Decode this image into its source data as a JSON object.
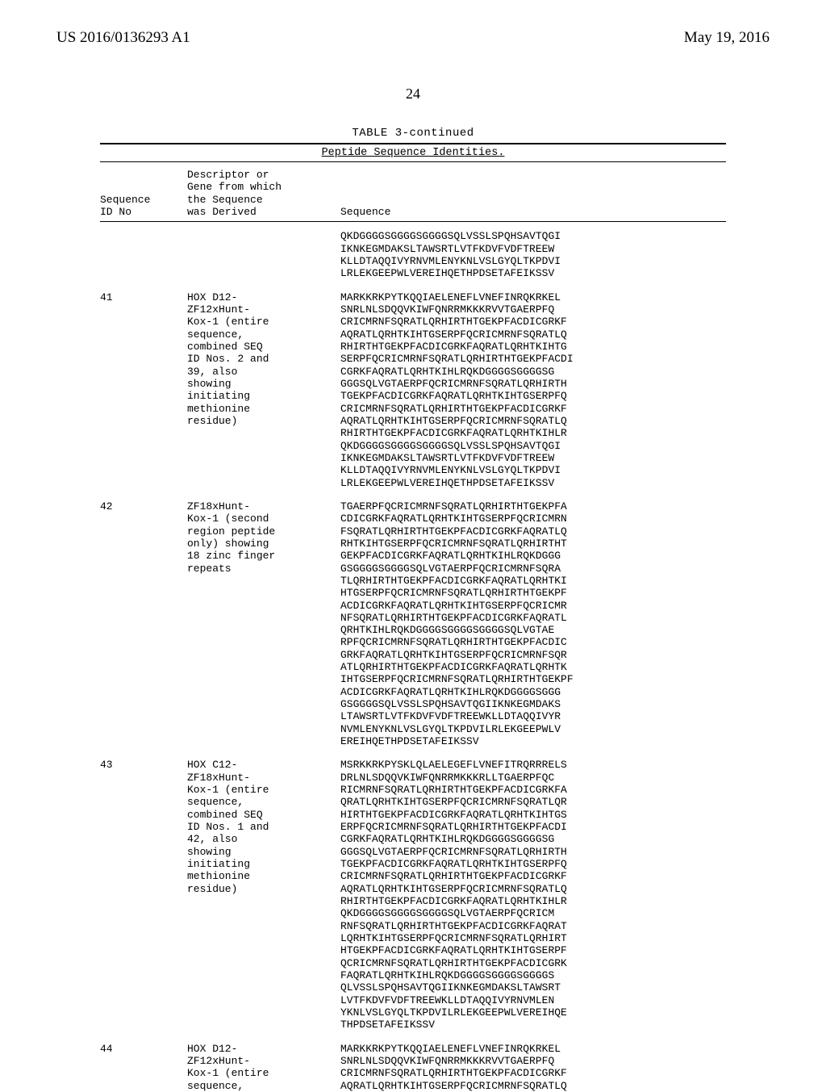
{
  "header": {
    "left": "US 2016/0136293 A1",
    "right": "May 19, 2016"
  },
  "page_number": "24",
  "table_title": "TABLE 3-continued",
  "subtitle": "Peptide Sequence Identities.",
  "columns": {
    "id": "Sequence\nID No",
    "desc": "Descriptor or\nGene from which\nthe Sequence\nwas Derived",
    "seq": "Sequence"
  },
  "rows": [
    {
      "id": "",
      "desc": "",
      "seq": [
        "QKDGGGGSGGGGSGGGGSQLVSSLSPQHSAVTQGI",
        "IKNKEGMDAKSLTAWSRTLVTFKDVFVDFTREEW",
        "KLLDTAQQIVYRNVMLENYKNLVSLGYQLTKPDVI",
        "LRLEKGEEPWLVEREIHQETHPDSETAFEIKSSV"
      ]
    },
    {
      "id": "41",
      "desc": "HOX D12-\nZF12xHunt-\nKox-1 (entire\nsequence,\ncombined SEQ\nID Nos. 2 and\n39, also\nshowing\ninitiating\nmethionine\nresidue)",
      "seq": [
        "MARKKRKPYTKQQIAELENEFLVNEFINRQKRKEL",
        "SNRLNLSDQQVKIWFQNRRMKKKRVVTGAERPFQ",
        "CRICMRNFSQRATLQRHIRTHTGEKPFACDICGRKF",
        "AQRATLQRHTKIHTGSERPFQCRICMRNFSQRATLQ",
        "RHIRTHTGEKPFACDICGRKFAQRATLQRHTKIHTG",
        "SERPFQCRICMRNFSQRATLQRHIRTHTGEKPFACDI",
        "CGRKFAQRATLQRHTKIHLRQKDGGGGSGGGGSG",
        "GGGSQLVGTAERPFQCRICMRNFSQRATLQRHIRTH",
        "TGEKPFACDICGRKFAQRATLQRHTKIHTGSERPFQ",
        "CRICMRNFSQRATLQRHIRTHTGEKPFACDICGRKF",
        "AQRATLQRHTKIHTGSERPFQCRICMRNFSQRATLQ",
        "RHIRTHTGEKPFACDICGRKFAQRATLQRHTKIHLR",
        "QKDGGGGSGGGGSGGGGSQLVSSLSPQHSAVTQGI",
        "IKNKEGMDAKSLTAWSRTLVTFKDVFVDFTREEW",
        "KLLDTAQQIVYRNVMLENYKNLVSLGYQLTKPDVI",
        "LRLEKGEEPWLVEREIHQETHPDSETAFEIKSSV"
      ]
    },
    {
      "id": "42",
      "desc": "ZF18xHunt-\nKox-1 (second\nregion peptide\nonly) showing\n18 zinc finger\nrepeats",
      "seq": [
        "TGAERPFQCRICMRNFSQRATLQRHIRTHTGEKPFA",
        "CDICGRKFAQRATLQRHTKIHTGSERPFQCRICMRN",
        "FSQRATLQRHIRTHTGEKPFACDICGRKFAQRATLQ",
        "RHTKIHTGSERPFQCRICMRNFSQRATLQRHIRTHT",
        "GEKPFACDICGRKFAQRATLQRHTKIHLRQKDGGG",
        "GSGGGGSGGGGSQLVGTAERPFQCRICMRNFSQRA",
        "TLQRHIRTHTGEKPFACDICGRKFAQRATLQRHTKI",
        "HTGSERPFQCRICMRNFSQRATLQRHIRTHTGEKPF",
        "ACDICGRKFAQRATLQRHTKIHTGSERPFQCRICMR",
        "NFSQRATLQRHIRTHTGEKPFACDICGRKFAQRATL",
        "QRHTKIHLRQKDGGGGSGGGGSGGGGSQLVGTAE",
        "RPFQCRICMRNFSQRATLQRHIRTHTGEKPFACDIC",
        "GRKFAQRATLQRHTKIHTGSERPFQCRICMRNFSQR",
        "ATLQRHIRTHTGEKPFACDICGRKFAQRATLQRHTK",
        "IHTGSERPFQCRICMRNFSQRATLQRHIRTHTGEKPF",
        "ACDICGRKFAQRATLQRHTKIHLRQKDGGGGSGGG",
        "GSGGGGSQLVSSLSPQHSAVTQGIIKNKEGMDAKS",
        "LTAWSRTLVTFKDVFVDFTREEWKLLDTAQQIVYR",
        "NVMLENYKNLVSLGYQLTKPDVILRLEKGEEPWLV",
        "EREIHQETHPDSETAFEIKSSV"
      ]
    },
    {
      "id": "43",
      "desc": "HOX C12-\nZF18xHunt-\nKox-1 (entire\nsequence,\ncombined SEQ\nID Nos. 1 and\n42, also\nshowing\ninitiating\nmethionine\nresidue)",
      "seq": [
        "MSRKKRKPYSKLQLAELEGEFLVNEFITRQRRRELS",
        "DRLNLSDQQVKIWFQNRRMKKKRLLTGAERPFQC",
        "RICMRNFSQRATLQRHIRTHTGEKPFACDICGRKFA",
        "QRATLQRHTKIHTGSERPFQCRICMRNFSQRATLQR",
        "HIRTHTGEKPFACDICGRKFAQRATLQRHTKIHTGS",
        "ERPFQCRICMRNFSQRATLQRHIRTHTGEKPFACDI",
        "CGRKFAQRATLQRHTKIHLRQKDGGGGSGGGGSG",
        "GGGSQLVGTAERPFQCRICMRNFSQRATLQRHIRTH",
        "TGEKPFACDICGRKFAQRATLQRHTKIHTGSERPFQ",
        "CRICMRNFSQRATLQRHIRTHTGEKPFACDICGRKF",
        "AQRATLQRHTKIHTGSERPFQCRICMRNFSQRATLQ",
        "RHIRTHTGEKPFACDICGRKFAQRATLQRHTKIHLR",
        "QKDGGGGSGGGGSGGGGSQLVGTAERPFQCRICM",
        "RNFSQRATLQRHIRTHTGEKPFACDICGRKFAQRAT",
        "LQRHTKIHTGSERPFQCRICMRNFSQRATLQRHIRT",
        "HTGEKPFACDICGRKFAQRATLQRHTKIHTGSERPF",
        "QCRICMRNFSQRATLQRHIRTHTGEKPFACDICGRK",
        "FAQRATLQRHTKIHLRQKDGGGGSGGGGSGGGGS",
        "QLVSSLSPQHSAVTQGIIKNKEGMDAKSLTAWSRT",
        "LVTFKDVFVDFTREEWKLLDTAQQIVYRNVMLEN",
        "YKNLVSLGYQLTKPDVILRLEKGEEPWLVEREIHQE",
        "THPDSETAFEIKSSV"
      ]
    },
    {
      "id": "44",
      "desc": "HOX D12-\nZF12xHunt-\nKox-1 (entire\nsequence,",
      "seq": [
        "MARKKRKPYTKQQIAELENEFLVNEFINRQKRKEL",
        "SNRLNLSDQQVKIWFQNRRMKKKRVVTGAERPFQ",
        "CRICMRNFSQRATLQRHIRTHTGEKPFACDICGRKF",
        "AQRATLQRHTKIHTGSERPFQCRICMRNFSQRATLQ"
      ]
    }
  ]
}
